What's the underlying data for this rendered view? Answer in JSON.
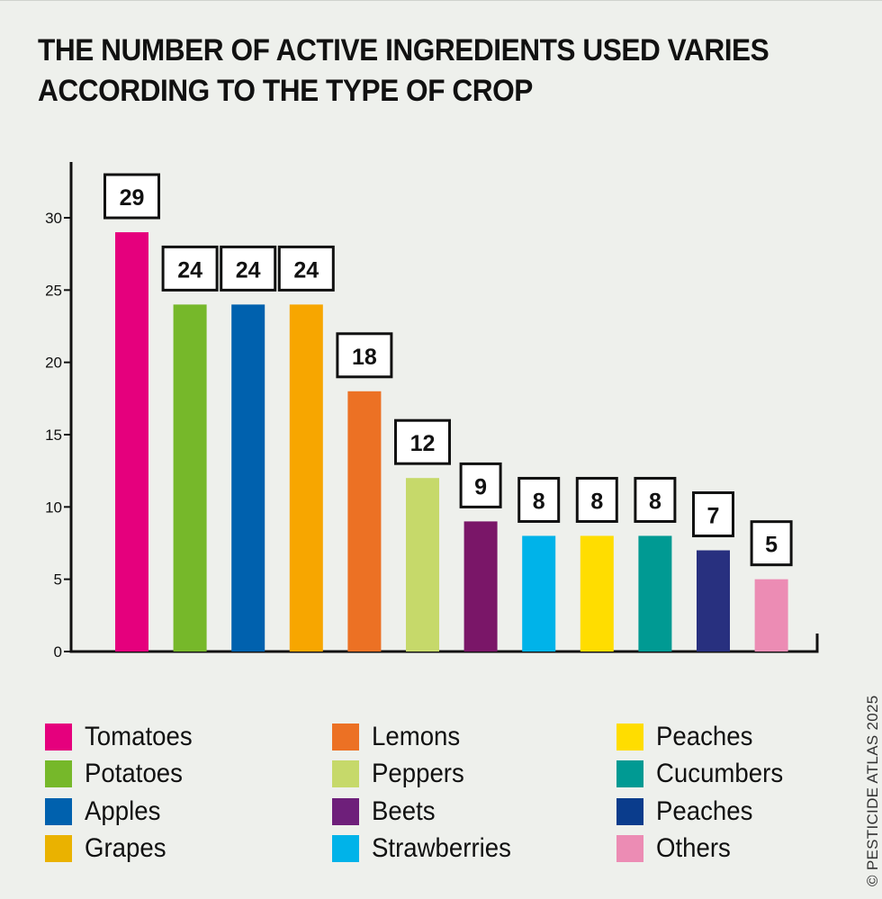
{
  "title": "THE NUMBER OF ACTIVE INGREDIENTS USED VARIES ACCORDING TO THE TYPE OF CROP",
  "credit": "© PESTICIDE ATLAS 2025",
  "chart_data": {
    "type": "bar",
    "title": "THE NUMBER OF ACTIVE INGREDIENTS USED VARIES ACCORDING TO THE TYPE OF CROP",
    "xlabel": "",
    "ylabel": "",
    "ylim": [
      0,
      30
    ],
    "yticks": [
      0,
      5,
      10,
      15,
      20,
      25,
      30
    ],
    "grid": false,
    "legend_position": "bottom",
    "categories": [
      "Tomatoes",
      "Potatoes",
      "Apples",
      "Grapes",
      "Lemons",
      "Peppers",
      "Beets",
      "Strawberries",
      "Peaches",
      "Cucumbers",
      "Peaches",
      "Others"
    ],
    "values": [
      29,
      24,
      24,
      24,
      18,
      12,
      9,
      8,
      8,
      8,
      7,
      5
    ],
    "data_labels": [
      "29",
      "24",
      "24",
      "24",
      "18",
      "12",
      "9",
      "8",
      "8",
      "8",
      "7",
      "5"
    ],
    "colors": [
      "#e5007d",
      "#76b82a",
      "#0061ae",
      "#f7a600",
      "#ec7124",
      "#c6d96a",
      "#7a1668",
      "#00b3e9",
      "#ffdd00",
      "#009a93",
      "#28307f",
      "#ec8cb4"
    ]
  },
  "legend": [
    {
      "label": "Tomatoes",
      "color": "#e5007d"
    },
    {
      "label": "Potatoes",
      "color": "#76b82a"
    },
    {
      "label": "Apples",
      "color": "#0061ae"
    },
    {
      "label": "Grapes",
      "color": "#eab200"
    },
    {
      "label": "Lemons",
      "color": "#ec7124"
    },
    {
      "label": "Peppers",
      "color": "#c6d96a"
    },
    {
      "label": "Beets",
      "color": "#6e1f7a"
    },
    {
      "label": "Strawberries",
      "color": "#00b3e9"
    },
    {
      "label": "Peaches",
      "color": "#ffdd00"
    },
    {
      "label": "Cucumbers",
      "color": "#009a93"
    },
    {
      "label": "Peaches",
      "color": "#0a3c8c"
    },
    {
      "label": "Others",
      "color": "#ec8cb4"
    }
  ]
}
